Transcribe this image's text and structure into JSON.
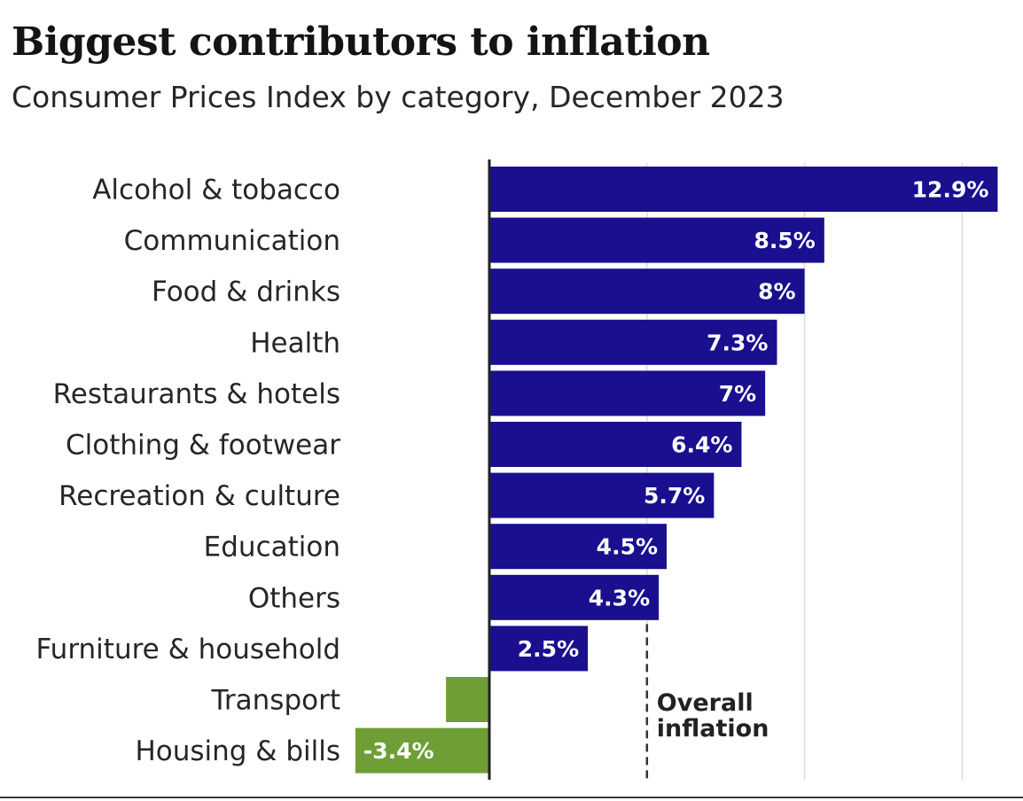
{
  "chart_data": {
    "type": "bar",
    "orientation": "horizontal",
    "title": "Biggest contributors to inflation",
    "subtitle": "Consumer Prices Index by category, December 2023",
    "xlabel": "",
    "ylabel": "",
    "xlim": [
      -3.6,
      13.0
    ],
    "gridlines": [
      0,
      4,
      8,
      12
    ],
    "categories": [
      "Alcohol & tobacco",
      "Communication",
      "Food & drinks",
      "Health",
      "Restaurants & hotels",
      "Clothing & footwear",
      "Recreation & culture",
      "Education",
      "Others",
      "Furniture & household",
      "Transport",
      "Housing & bills"
    ],
    "values": [
      12.9,
      8.5,
      8.0,
      7.3,
      7.0,
      6.4,
      5.7,
      4.5,
      4.3,
      2.5,
      -1.1,
      -3.4
    ],
    "data_labels": [
      "12.9%",
      "8.5%",
      "8%",
      "7.3%",
      "7%",
      "6.4%",
      "5.7%",
      "4.5%",
      "4.3%",
      "2.5%",
      "",
      "-3.4%"
    ],
    "reference_line": {
      "value": 4.0,
      "label_line1": "Overall",
      "label_line2": "inflation"
    },
    "colors": {
      "positive": "#1a0f8f",
      "negative": "#6f9e36",
      "label_text": "#ffffff",
      "category_text": "#262626",
      "axis": "#222222",
      "grid": "#dadada"
    }
  }
}
